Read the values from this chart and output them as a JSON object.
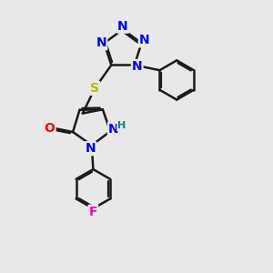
{
  "bg_color": "#e8e8e8",
  "bond_color": "#1a1a1a",
  "bond_width": 1.8,
  "dbo": 0.06,
  "atom_colors": {
    "N": "#0000ff",
    "O": "#ff0000",
    "S": "#b8b800",
    "F": "#ff00cc",
    "H_label": "#008080",
    "C": "#1a1a1a"
  },
  "font_size_atom": 10,
  "font_size_h": 8
}
